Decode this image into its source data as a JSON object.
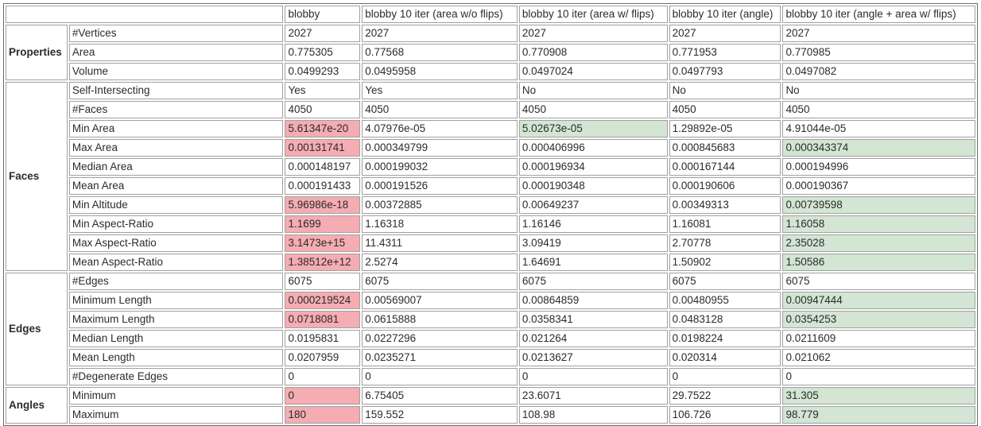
{
  "table": {
    "corner_label": "",
    "columns": [
      "blobby",
      "blobby 10 iter (area w/o flips)",
      "blobby 10 iter (area w/ flips)",
      "blobby 10 iter (angle)",
      "blobby 10 iter (angle + area w/ flips)"
    ],
    "highlight_colors": {
      "worst": "#f5acb3",
      "best": "#d3e5d3"
    },
    "groups": [
      {
        "label": "Properties",
        "rows": [
          {
            "property": "#Vertices",
            "values": [
              "2027",
              "2027",
              "2027",
              "2027",
              "2027"
            ]
          },
          {
            "property": "Area",
            "values": [
              "0.775305",
              "0.77568",
              "0.770908",
              "0.771953",
              "0.770985"
            ]
          },
          {
            "property": "Volume",
            "values": [
              "0.0499293",
              "0.0495958",
              "0.0497024",
              "0.0497793",
              "0.0497082"
            ]
          }
        ]
      },
      {
        "label": "Faces",
        "rows": [
          {
            "property": "Self-Intersecting",
            "values": [
              "Yes",
              "Yes",
              "No",
              "No",
              "No"
            ]
          },
          {
            "property": "#Faces",
            "values": [
              "4050",
              "4050",
              "4050",
              "4050",
              "4050"
            ]
          },
          {
            "property": "Min Area",
            "values": [
              "5.61347e-20",
              "4.07976e-05",
              "5.02673e-05",
              "1.29892e-05",
              "4.91044e-05"
            ],
            "highlights": {
              "0": "worst",
              "2": "best"
            }
          },
          {
            "property": "Max Area",
            "values": [
              "0.00131741",
              "0.000349799",
              "0.000406996",
              "0.000845683",
              "0.000343374"
            ],
            "highlights": {
              "0": "worst",
              "4": "best"
            }
          },
          {
            "property": "Median Area",
            "values": [
              "0.000148197",
              "0.000199032",
              "0.000196934",
              "0.000167144",
              "0.000194996"
            ]
          },
          {
            "property": "Mean Area",
            "values": [
              "0.000191433",
              "0.000191526",
              "0.000190348",
              "0.000190606",
              "0.000190367"
            ]
          },
          {
            "property": "Min Altitude",
            "values": [
              "5.96986e-18",
              "0.00372885",
              "0.00649237",
              "0.00349313",
              "0.00739598"
            ],
            "highlights": {
              "0": "worst",
              "4": "best"
            }
          },
          {
            "property": "Min Aspect-Ratio",
            "values": [
              "1.1699",
              "1.16318",
              "1.16146",
              "1.16081",
              "1.16058"
            ],
            "highlights": {
              "0": "worst",
              "4": "best"
            }
          },
          {
            "property": "Max Aspect-Ratio",
            "values": [
              "3.1473e+15",
              "11.4311",
              "3.09419",
              "2.70778",
              "2.35028"
            ],
            "highlights": {
              "0": "worst",
              "4": "best"
            }
          },
          {
            "property": "Mean Aspect-Ratio",
            "values": [
              "1.38512e+12",
              "2.5274",
              "1.64691",
              "1.50902",
              "1.50586"
            ],
            "highlights": {
              "0": "worst",
              "4": "best"
            }
          }
        ]
      },
      {
        "label": "Edges",
        "rows": [
          {
            "property": "#Edges",
            "values": [
              "6075",
              "6075",
              "6075",
              "6075",
              "6075"
            ]
          },
          {
            "property": "Minimum Length",
            "values": [
              "0.000219524",
              "0.00569007",
              "0.00864859",
              "0.00480955",
              "0.00947444"
            ],
            "highlights": {
              "0": "worst",
              "4": "best"
            }
          },
          {
            "property": "Maximum Length",
            "values": [
              "0.0718081",
              "0.0615888",
              "0.0358341",
              "0.0483128",
              "0.0354253"
            ],
            "highlights": {
              "0": "worst",
              "4": "best"
            }
          },
          {
            "property": "Median Length",
            "values": [
              "0.0195831",
              "0.0227296",
              "0.021264",
              "0.0198224",
              "0.0211609"
            ]
          },
          {
            "property": "Mean Length",
            "values": [
              "0.0207959",
              "0.0235271",
              "0.0213627",
              "0.020314",
              "0.021062"
            ]
          },
          {
            "property": "#Degenerate Edges",
            "values": [
              "0",
              "0",
              "0",
              "0",
              "0"
            ]
          }
        ]
      },
      {
        "label": "Angles",
        "rows": [
          {
            "property": "Minimum",
            "values": [
              "0",
              "6.75405",
              "23.6071",
              "29.7522",
              "31.305"
            ],
            "highlights": {
              "0": "worst",
              "4": "best"
            }
          },
          {
            "property": "Maximum",
            "values": [
              "180",
              "159.552",
              "108.98",
              "106.726",
              "98.779"
            ],
            "highlights": {
              "0": "worst",
              "4": "best"
            }
          }
        ]
      }
    ]
  }
}
